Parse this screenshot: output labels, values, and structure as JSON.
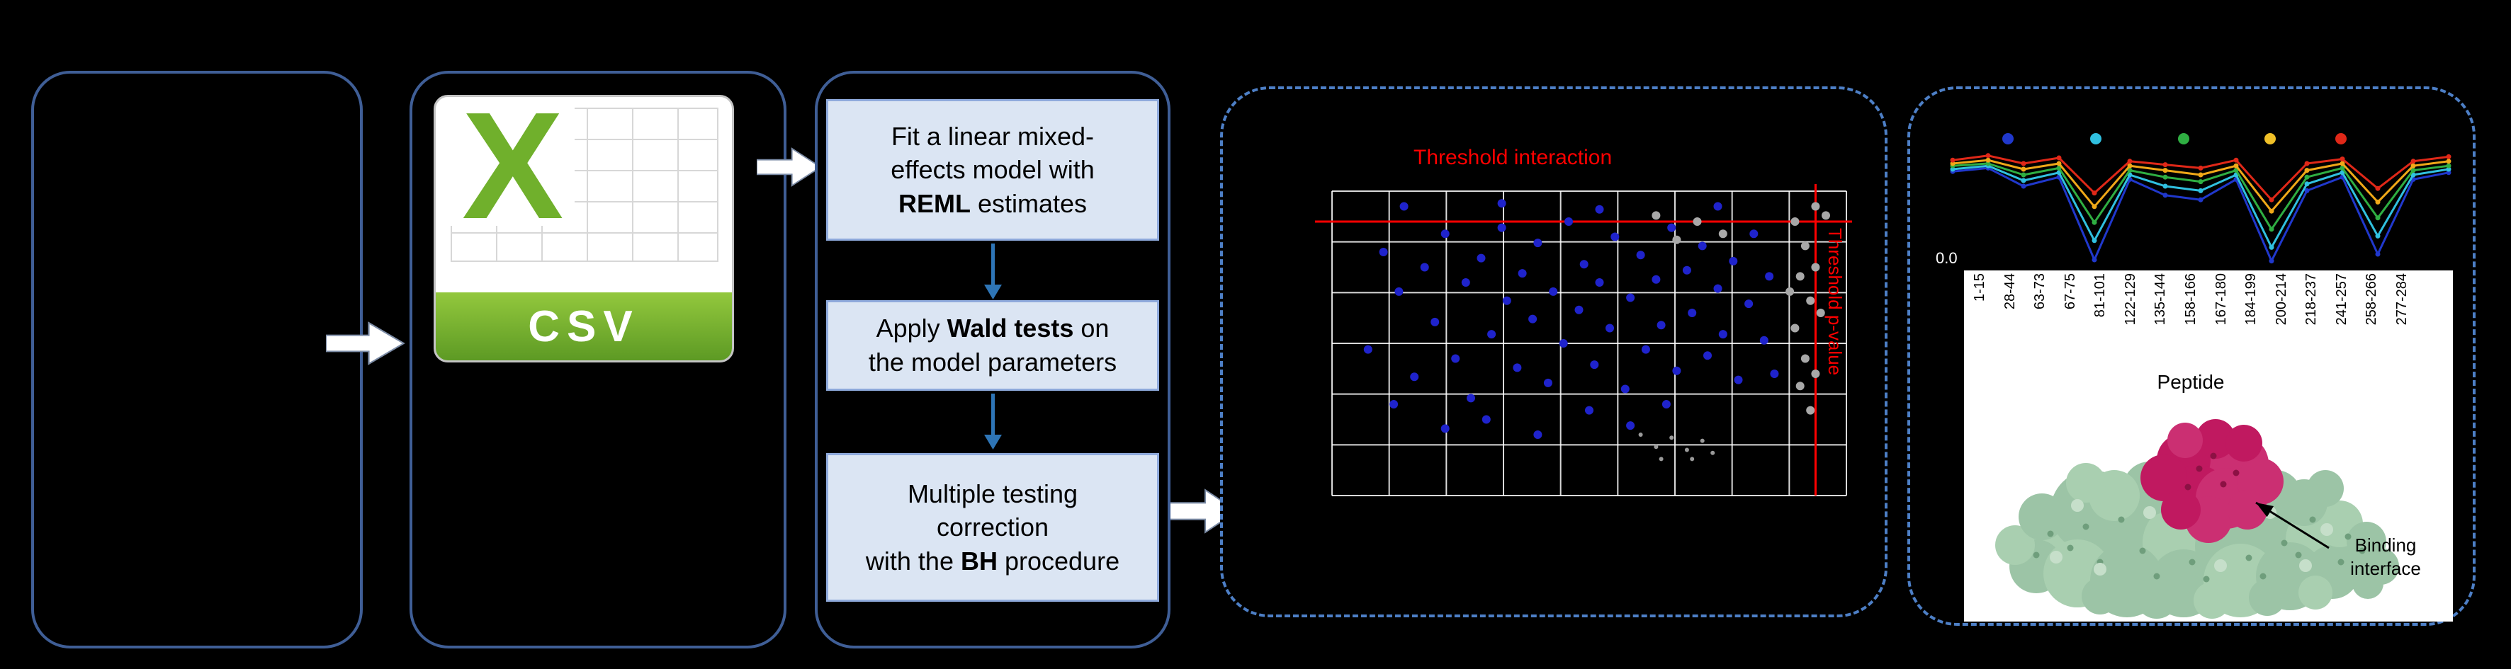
{
  "palette": {
    "background": "#000000",
    "panel_border": "#3f5e96",
    "dashed_border": "#4d7fc6",
    "process_box_fill": "#dbe5f3",
    "process_box_border": "#8faadc",
    "flow_arrow_blue": "#2e75b6",
    "csv_green": "#70b02c",
    "threshold_red": "#ff0000",
    "protein_surface_green": "#9cc4a6",
    "binding_interface_crimson": "#c01960"
  },
  "figure": {
    "csv_icon": {
      "letter": "X",
      "banner_label": "CSV"
    },
    "steps": [
      {
        "segments": [
          {
            "t": "Fit a linear mixed-\neffects model with\n"
          },
          {
            "t": "REML",
            "b": true
          },
          {
            "t": " estimates"
          }
        ]
      },
      {
        "segments": [
          {
            "t": "Apply "
          },
          {
            "t": "Wald tests",
            "b": true
          },
          {
            "t": " on\nthe model parameters"
          }
        ]
      },
      {
        "segments": [
          {
            "t": "Multiple testing\ncorrection\nwith the "
          },
          {
            "t": "BH",
            "b": true
          },
          {
            "t": " procedure"
          }
        ]
      }
    ]
  },
  "chart_data": [
    {
      "type": "scatter",
      "title": "Threshold interaction",
      "right_label": "Threshold p-value",
      "grid": {
        "cols": 9,
        "rows": 6,
        "color": "#ffffff"
      },
      "threshold_color": "#ff0000",
      "threshold_line_y_frac": 0.1,
      "threshold_line_x_frac": 0.94,
      "series": [
        {
          "name": "series-blue",
          "color": "#1f23cc",
          "r": 6,
          "points": [
            [
              0.07,
              0.52
            ],
            [
              0.1,
              0.2
            ],
            [
              0.13,
              0.33
            ],
            [
              0.16,
              0.61
            ],
            [
              0.18,
              0.25
            ],
            [
              0.2,
              0.43
            ],
            [
              0.22,
              0.14
            ],
            [
              0.24,
              0.55
            ],
            [
              0.26,
              0.3
            ],
            [
              0.27,
              0.68
            ],
            [
              0.29,
              0.22
            ],
            [
              0.31,
              0.47
            ],
            [
              0.33,
              0.12
            ],
            [
              0.34,
              0.36
            ],
            [
              0.36,
              0.58
            ],
            [
              0.37,
              0.27
            ],
            [
              0.39,
              0.42
            ],
            [
              0.4,
              0.17
            ],
            [
              0.42,
              0.63
            ],
            [
              0.43,
              0.33
            ],
            [
              0.45,
              0.5
            ],
            [
              0.46,
              0.1
            ],
            [
              0.48,
              0.39
            ],
            [
              0.49,
              0.24
            ],
            [
              0.51,
              0.57
            ],
            [
              0.52,
              0.3
            ],
            [
              0.54,
              0.45
            ],
            [
              0.55,
              0.15
            ],
            [
              0.57,
              0.65
            ],
            [
              0.58,
              0.35
            ],
            [
              0.6,
              0.21
            ],
            [
              0.61,
              0.52
            ],
            [
              0.63,
              0.29
            ],
            [
              0.64,
              0.44
            ],
            [
              0.66,
              0.12
            ],
            [
              0.67,
              0.59
            ],
            [
              0.69,
              0.26
            ],
            [
              0.7,
              0.4
            ],
            [
              0.72,
              0.18
            ],
            [
              0.73,
              0.54
            ],
            [
              0.75,
              0.32
            ],
            [
              0.76,
              0.47
            ],
            [
              0.78,
              0.23
            ],
            [
              0.79,
              0.62
            ],
            [
              0.81,
              0.37
            ],
            [
              0.82,
              0.14
            ],
            [
              0.84,
              0.49
            ],
            [
              0.85,
              0.28
            ],
            [
              0.3,
              0.75
            ],
            [
              0.5,
              0.72
            ],
            [
              0.65,
              0.7
            ],
            [
              0.12,
              0.7
            ],
            [
              0.22,
              0.78
            ],
            [
              0.4,
              0.8
            ],
            [
              0.58,
              0.77
            ],
            [
              0.14,
              0.05
            ],
            [
              0.33,
              0.04
            ],
            [
              0.52,
              0.06
            ],
            [
              0.75,
              0.05
            ],
            [
              0.86,
              0.6
            ]
          ]
        },
        {
          "name": "series-gray",
          "color": "#a8a8a8",
          "r": 6,
          "points": [
            [
              0.9,
              0.1
            ],
            [
              0.92,
              0.18
            ],
            [
              0.91,
              0.28
            ],
            [
              0.93,
              0.36
            ],
            [
              0.9,
              0.45
            ],
            [
              0.92,
              0.55
            ],
            [
              0.91,
              0.64
            ],
            [
              0.93,
              0.72
            ],
            [
              0.94,
              0.25
            ],
            [
              0.95,
              0.4
            ],
            [
              0.89,
              0.33
            ],
            [
              0.94,
              0.6
            ],
            [
              0.96,
              0.08
            ],
            [
              0.67,
              0.16
            ],
            [
              0.71,
              0.1
            ],
            [
              0.76,
              0.14
            ],
            [
              0.63,
              0.08
            ],
            [
              0.94,
              0.05
            ]
          ]
        },
        {
          "name": "series-gray-small",
          "color": "#9a9a9a",
          "r": 3,
          "points": [
            [
              0.6,
              0.8
            ],
            [
              0.63,
              0.84
            ],
            [
              0.66,
              0.81
            ],
            [
              0.69,
              0.85
            ],
            [
              0.72,
              0.82
            ],
            [
              0.64,
              0.88
            ],
            [
              0.7,
              0.88
            ],
            [
              0.74,
              0.86
            ]
          ]
        }
      ]
    },
    {
      "type": "line",
      "x_categories": [
        "1-15",
        "28-44",
        "63-73",
        "67-75",
        "81-101",
        "122-129",
        "135-144",
        "158-166",
        "167-180",
        "184-199",
        "200-214",
        "218-237",
        "241-257",
        "258-266",
        "277-284"
      ],
      "xlabel": "Peptide",
      "y_tick_label": "0.0",
      "annotation": "Binding interface",
      "legend_dot_colors": [
        "#2038cc",
        "#30c0e0",
        "#2fae42",
        "#f0c028",
        "#e02818"
      ],
      "series": [
        {
          "name": "series-blue",
          "color": "#2038cc",
          "values": [
            0.83,
            0.86,
            0.7,
            0.78,
            0.05,
            0.76,
            0.62,
            0.58,
            0.76,
            0.04,
            0.66,
            0.78,
            0.1,
            0.76,
            0.82
          ]
        },
        {
          "name": "series-cyan",
          "color": "#30c0e0",
          "values": [
            0.85,
            0.88,
            0.75,
            0.82,
            0.22,
            0.8,
            0.7,
            0.66,
            0.8,
            0.16,
            0.72,
            0.82,
            0.26,
            0.8,
            0.85
          ]
        },
        {
          "name": "series-green",
          "color": "#2fae42",
          "values": [
            0.88,
            0.9,
            0.8,
            0.86,
            0.38,
            0.84,
            0.78,
            0.74,
            0.84,
            0.32,
            0.78,
            0.86,
            0.42,
            0.84,
            0.88
          ]
        },
        {
          "name": "series-yellow",
          "color": "#f0a818",
          "values": [
            0.9,
            0.93,
            0.85,
            0.9,
            0.52,
            0.88,
            0.84,
            0.8,
            0.88,
            0.48,
            0.84,
            0.9,
            0.56,
            0.88,
            0.92
          ]
        },
        {
          "name": "series-red",
          "color": "#e02818",
          "values": [
            0.93,
            0.97,
            0.9,
            0.95,
            0.64,
            0.92,
            0.89,
            0.86,
            0.93,
            0.58,
            0.9,
            0.94,
            0.68,
            0.92,
            0.96
          ]
        }
      ]
    }
  ]
}
